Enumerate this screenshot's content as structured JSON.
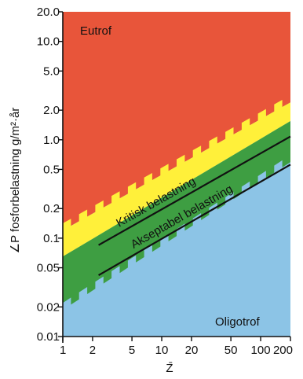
{
  "chart_data": {
    "type": "area",
    "title": "",
    "xlabel": "Z̄",
    "ylabel": "∠P fosforbelastning g/m²·år",
    "x_scale": "log",
    "y_scale": "log",
    "xlim": [
      1,
      200
    ],
    "ylim": [
      0.01,
      20
    ],
    "x_ticks": [
      1,
      2,
      5,
      10,
      20,
      50,
      100,
      200
    ],
    "x_tick_labels": [
      "1",
      "2",
      "5",
      "10",
      "20",
      "50",
      "100",
      "200"
    ],
    "y_ticks": [
      0.01,
      0.02,
      0.05,
      0.1,
      0.2,
      0.5,
      1,
      2,
      5,
      10,
      20
    ],
    "y_tick_labels": [
      "0.01",
      "0.02",
      "0.05",
      "0.1",
      "0.2",
      "0.5",
      "1.0",
      "2.0",
      "5.0",
      "10.0",
      "20.0"
    ],
    "grid": false,
    "regions": [
      {
        "name": "Eutrof",
        "color": "#E8553A"
      },
      {
        "name": "Oligotrof",
        "color": "#8CC4E6"
      }
    ],
    "bands": [
      {
        "color": "#FFF03A",
        "lower": {
          "x": [
            1,
            200
          ],
          "y": [
            0.065,
            1.55
          ]
        },
        "upper": {
          "x": [
            1,
            200
          ],
          "y": [
            0.12,
            2.4
          ]
        }
      },
      {
        "color": "#3E9E42",
        "lower": {
          "x": [
            1,
            200
          ],
          "y": [
            0.022,
            0.7
          ]
        },
        "upper": {
          "x": [
            1,
            200
          ],
          "y": [
            0.065,
            1.55
          ]
        }
      }
    ],
    "series": [
      {
        "name": "Kritisk belastning",
        "x": [
          2.3,
          200
        ],
        "y": [
          0.085,
          1.08
        ],
        "color": "#111111"
      },
      {
        "name": "Akseptabel belastning",
        "x": [
          2.3,
          200
        ],
        "y": [
          0.042,
          0.56
        ],
        "color": "#111111"
      }
    ]
  }
}
